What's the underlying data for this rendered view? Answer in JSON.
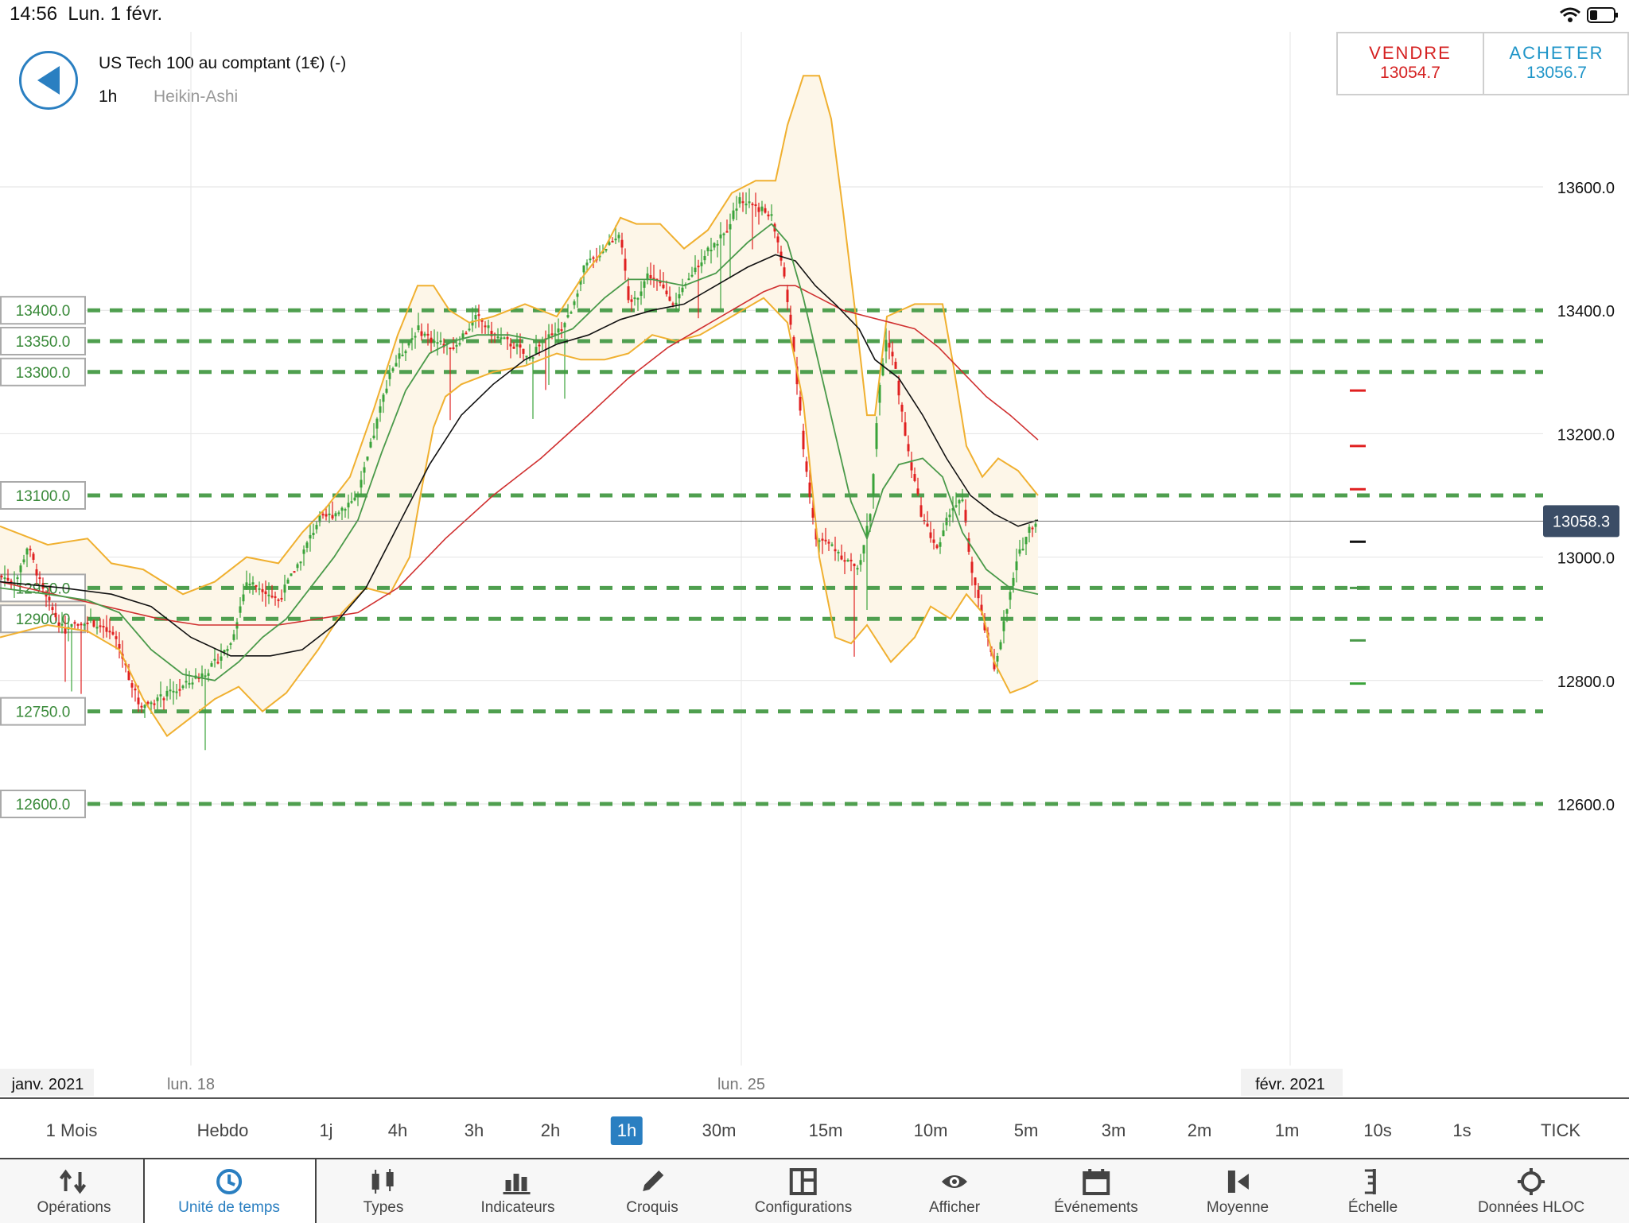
{
  "status": {
    "time": "14:56",
    "date": "Lun. 1 févr."
  },
  "header": {
    "instrument": "US Tech 100 au comptant (1€) (-)",
    "timeframe": "1h",
    "chart_type": "Heikin-Ashi"
  },
  "trade": {
    "sell_label": "VENDRE",
    "sell_price": "13054.7",
    "buy_label": "ACHETER",
    "buy_price": "13056.7"
  },
  "colors": {
    "up": "#3aa33a",
    "down": "#e02020",
    "bollinger": "#f0b030",
    "band_fill": "#fdf6e8",
    "ma_fast": "#4a9a4a",
    "ma_mid": "#111111",
    "ma_slow": "#d03030",
    "level_line": "#4f9f4f",
    "accent": "#2a7fc1",
    "last_price_bg": "#3b4d66"
  },
  "chart_data": {
    "type": "candlestick",
    "ylim": [
      12430,
      13830
    ],
    "y_ticks": [
      "13600.0",
      "13400.0",
      "13200.0",
      "13000.0",
      "12800.0",
      "12600.0"
    ],
    "x_ticks": [
      "janv. 2021",
      "lun. 18",
      "lun. 25",
      "févr. 2021"
    ],
    "last_price": "13058.3",
    "horizontal_levels": [
      "13400.0",
      "13350.0",
      "13300.0",
      "13100.0",
      "12950.0",
      "12900.0",
      "12750.0",
      "12600.0"
    ],
    "close_anchors": [
      [
        0,
        12970
      ],
      [
        20,
        12960
      ],
      [
        35,
        13020
      ],
      [
        55,
        12940
      ],
      [
        80,
        12880
      ],
      [
        110,
        12900
      ],
      [
        145,
        12870
      ],
      [
        175,
        12760
      ],
      [
        200,
        12770
      ],
      [
        230,
        12790
      ],
      [
        265,
        12820
      ],
      [
        290,
        12860
      ],
      [
        310,
        12960
      ],
      [
        330,
        12950
      ],
      [
        350,
        12930
      ],
      [
        375,
        12990
      ],
      [
        400,
        13060
      ],
      [
        420,
        13070
      ],
      [
        450,
        13100
      ],
      [
        470,
        13200
      ],
      [
        490,
        13300
      ],
      [
        510,
        13340
      ],
      [
        525,
        13370
      ],
      [
        545,
        13350
      ],
      [
        570,
        13340
      ],
      [
        600,
        13390
      ],
      [
        620,
        13360
      ],
      [
        650,
        13340
      ],
      [
        665,
        13320
      ],
      [
        680,
        13350
      ],
      [
        700,
        13360
      ],
      [
        715,
        13390
      ],
      [
        735,
        13470
      ],
      [
        760,
        13500
      ],
      [
        780,
        13530
      ],
      [
        790,
        13410
      ],
      [
        800,
        13420
      ],
      [
        815,
        13460
      ],
      [
        830,
        13440
      ],
      [
        850,
        13410
      ],
      [
        870,
        13460
      ],
      [
        890,
        13500
      ],
      [
        910,
        13520
      ],
      [
        930,
        13580
      ],
      [
        950,
        13570
      ],
      [
        970,
        13550
      ],
      [
        980,
        13500
      ],
      [
        995,
        13370
      ],
      [
        1010,
        13180
      ],
      [
        1025,
        13030
      ],
      [
        1045,
        13020
      ],
      [
        1060,
        13000
      ],
      [
        1080,
        12980
      ],
      [
        1095,
        13080
      ],
      [
        1105,
        13270
      ],
      [
        1115,
        13360
      ],
      [
        1125,
        13310
      ],
      [
        1140,
        13180
      ],
      [
        1160,
        13060
      ],
      [
        1180,
        13010
      ],
      [
        1195,
        13080
      ],
      [
        1210,
        13090
      ],
      [
        1220,
        12990
      ],
      [
        1235,
        12900
      ],
      [
        1250,
        12820
      ],
      [
        1265,
        12910
      ],
      [
        1280,
        13000
      ],
      [
        1295,
        13050
      ],
      [
        1305,
        13058
      ]
    ],
    "bollinger_upper_anchors": [
      [
        0,
        13050
      ],
      [
        60,
        13020
      ],
      [
        110,
        13030
      ],
      [
        140,
        12990
      ],
      [
        180,
        12980
      ],
      [
        230,
        12940
      ],
      [
        270,
        12960
      ],
      [
        310,
        13000
      ],
      [
        350,
        12990
      ],
      [
        380,
        13040
      ],
      [
        410,
        13080
      ],
      [
        440,
        13130
      ],
      [
        470,
        13240
      ],
      [
        500,
        13360
      ],
      [
        525,
        13440
      ],
      [
        545,
        13440
      ],
      [
        565,
        13400
      ],
      [
        590,
        13380
      ],
      [
        620,
        13390
      ],
      [
        660,
        13410
      ],
      [
        700,
        13390
      ],
      [
        730,
        13450
      ],
      [
        760,
        13500
      ],
      [
        780,
        13550
      ],
      [
        800,
        13540
      ],
      [
        830,
        13540
      ],
      [
        860,
        13500
      ],
      [
        890,
        13530
      ],
      [
        920,
        13590
      ],
      [
        950,
        13610
      ],
      [
        975,
        13610
      ],
      [
        990,
        13700
      ],
      [
        1010,
        13780
      ],
      [
        1030,
        13780
      ],
      [
        1045,
        13710
      ],
      [
        1060,
        13560
      ],
      [
        1075,
        13400
      ],
      [
        1090,
        13230
      ],
      [
        1100,
        13230
      ],
      [
        1115,
        13390
      ],
      [
        1150,
        13410
      ],
      [
        1185,
        13410
      ],
      [
        1200,
        13300
      ],
      [
        1215,
        13180
      ],
      [
        1235,
        13130
      ],
      [
        1255,
        13160
      ],
      [
        1280,
        13140
      ],
      [
        1305,
        13100
      ]
    ],
    "bollinger_lower_anchors": [
      [
        0,
        12870
      ],
      [
        60,
        12890
      ],
      [
        110,
        12880
      ],
      [
        150,
        12850
      ],
      [
        180,
        12770
      ],
      [
        210,
        12710
      ],
      [
        240,
        12740
      ],
      [
        270,
        12770
      ],
      [
        300,
        12790
      ],
      [
        330,
        12750
      ],
      [
        360,
        12780
      ],
      [
        400,
        12850
      ],
      [
        430,
        12910
      ],
      [
        460,
        12950
      ],
      [
        490,
        12940
      ],
      [
        515,
        13000
      ],
      [
        530,
        13110
      ],
      [
        545,
        13210
      ],
      [
        560,
        13260
      ],
      [
        580,
        13280
      ],
      [
        620,
        13300
      ],
      [
        660,
        13310
      ],
      [
        700,
        13330
      ],
      [
        730,
        13320
      ],
      [
        760,
        13320
      ],
      [
        790,
        13330
      ],
      [
        820,
        13360
      ],
      [
        850,
        13350
      ],
      [
        880,
        13360
      ],
      [
        920,
        13390
      ],
      [
        960,
        13420
      ],
      [
        990,
        13380
      ],
      [
        1010,
        13250
      ],
      [
        1030,
        13000
      ],
      [
        1050,
        12870
      ],
      [
        1070,
        12860
      ],
      [
        1090,
        12890
      ],
      [
        1105,
        12860
      ],
      [
        1120,
        12830
      ],
      [
        1150,
        12870
      ],
      [
        1170,
        12920
      ],
      [
        1195,
        12900
      ],
      [
        1215,
        12940
      ],
      [
        1235,
        12910
      ],
      [
        1250,
        12830
      ],
      [
        1270,
        12780
      ],
      [
        1290,
        12790
      ],
      [
        1305,
        12800
      ]
    ],
    "ma_fast_anchors": [
      [
        0,
        12950
      ],
      [
        60,
        12940
      ],
      [
        110,
        12930
      ],
      [
        150,
        12910
      ],
      [
        190,
        12850
      ],
      [
        230,
        12810
      ],
      [
        270,
        12800
      ],
      [
        300,
        12830
      ],
      [
        330,
        12870
      ],
      [
        360,
        12900
      ],
      [
        390,
        12950
      ],
      [
        420,
        13000
      ],
      [
        450,
        13060
      ],
      [
        480,
        13170
      ],
      [
        510,
        13270
      ],
      [
        540,
        13330
      ],
      [
        570,
        13350
      ],
      [
        600,
        13360
      ],
      [
        640,
        13360
      ],
      [
        680,
        13350
      ],
      [
        720,
        13370
      ],
      [
        760,
        13420
      ],
      [
        790,
        13450
      ],
      [
        820,
        13450
      ],
      [
        860,
        13440
      ],
      [
        900,
        13460
      ],
      [
        940,
        13510
      ],
      [
        970,
        13540
      ],
      [
        990,
        13510
      ],
      [
        1010,
        13420
      ],
      [
        1030,
        13310
      ],
      [
        1050,
        13200
      ],
      [
        1070,
        13090
      ],
      [
        1090,
        13030
      ],
      [
        1110,
        13110
      ],
      [
        1130,
        13150
      ],
      [
        1160,
        13160
      ],
      [
        1185,
        13130
      ],
      [
        1210,
        13040
      ],
      [
        1240,
        12980
      ],
      [
        1270,
        12950
      ],
      [
        1305,
        12940
      ]
    ],
    "ma_mid_anchors": [
      [
        0,
        12960
      ],
      [
        80,
        12950
      ],
      [
        140,
        12940
      ],
      [
        190,
        12920
      ],
      [
        240,
        12870
      ],
      [
        290,
        12840
      ],
      [
        340,
        12840
      ],
      [
        380,
        12850
      ],
      [
        420,
        12890
      ],
      [
        460,
        12950
      ],
      [
        500,
        13050
      ],
      [
        540,
        13150
      ],
      [
        580,
        13230
      ],
      [
        620,
        13280
      ],
      [
        660,
        13320
      ],
      [
        700,
        13345
      ],
      [
        740,
        13360
      ],
      [
        780,
        13385
      ],
      [
        820,
        13400
      ],
      [
        860,
        13410
      ],
      [
        900,
        13440
      ],
      [
        940,
        13470
      ],
      [
        975,
        13490
      ],
      [
        1000,
        13480
      ],
      [
        1025,
        13440
      ],
      [
        1050,
        13410
      ],
      [
        1080,
        13370
      ],
      [
        1100,
        13320
      ],
      [
        1130,
        13290
      ],
      [
        1160,
        13230
      ],
      [
        1190,
        13160
      ],
      [
        1220,
        13100
      ],
      [
        1250,
        13070
      ],
      [
        1280,
        13050
      ],
      [
        1305,
        13060
      ]
    ],
    "ma_slow_anchors": [
      [
        0,
        12960
      ],
      [
        100,
        12930
      ],
      [
        200,
        12900
      ],
      [
        250,
        12890
      ],
      [
        300,
        12890
      ],
      [
        350,
        12890
      ],
      [
        400,
        12900
      ],
      [
        450,
        12910
      ],
      [
        500,
        12950
      ],
      [
        560,
        13030
      ],
      [
        620,
        13100
      ],
      [
        680,
        13160
      ],
      [
        740,
        13230
      ],
      [
        790,
        13290
      ],
      [
        840,
        13340
      ],
      [
        880,
        13370
      ],
      [
        920,
        13400
      ],
      [
        960,
        13430
      ],
      [
        980,
        13440
      ],
      [
        1000,
        13440
      ],
      [
        1030,
        13420
      ],
      [
        1060,
        13400
      ],
      [
        1090,
        13390
      ],
      [
        1120,
        13380
      ],
      [
        1150,
        13370
      ],
      [
        1180,
        13340
      ],
      [
        1210,
        13300
      ],
      [
        1240,
        13260
      ],
      [
        1270,
        13230
      ],
      [
        1305,
        13190
      ]
    ],
    "right_markers": [
      {
        "price": 13270,
        "color": "#e02020"
      },
      {
        "price": 13180,
        "color": "#e02020"
      },
      {
        "price": 13110,
        "color": "#e02020"
      },
      {
        "price": 13025,
        "color": "#111111"
      },
      {
        "price": 12950,
        "color": "#4a9a4a"
      },
      {
        "price": 12865,
        "color": "#4a9a4a"
      },
      {
        "price": 12795,
        "color": "#3aa33a"
      }
    ]
  },
  "timeframes": [
    "1 Mois",
    "Hebdo",
    "1j",
    "4h",
    "3h",
    "2h",
    "1h",
    "30m",
    "15m",
    "10m",
    "5m",
    "3m",
    "2m",
    "1m",
    "10s",
    "1s",
    "TICK"
  ],
  "timeframe_active": "1h",
  "toolbar": [
    {
      "label": "Opérations",
      "icon": "arrows-icon"
    },
    {
      "label": "Unité de temps",
      "icon": "clock-icon"
    },
    {
      "label": "Types",
      "icon": "candles-icon"
    },
    {
      "label": "Indicateurs",
      "icon": "bars-icon"
    },
    {
      "label": "Croquis",
      "icon": "pencil-icon"
    },
    {
      "label": "Configurations",
      "icon": "layout-icon"
    },
    {
      "label": "Afficher",
      "icon": "eye-icon"
    },
    {
      "label": "Événements",
      "icon": "calendar-icon"
    },
    {
      "label": "Moyenne",
      "icon": "average-icon"
    },
    {
      "label": "Échelle",
      "icon": "scale-icon"
    },
    {
      "label": "Données HLOC",
      "icon": "crosshair-icon"
    }
  ]
}
